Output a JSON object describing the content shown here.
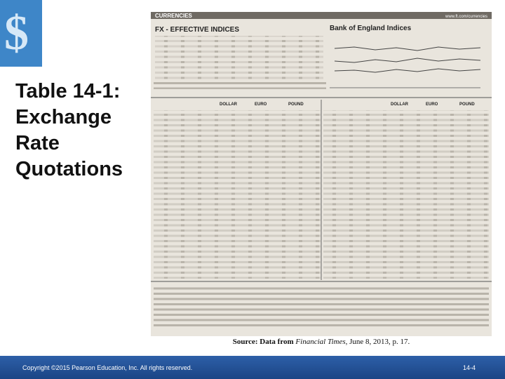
{
  "slide": {
    "title": "Table 14-1: Exchange Rate Quotations",
    "clipping": {
      "section": "CURRENCIES",
      "url": "www.ft.com/currencies",
      "left_heading": "FX - EFFECTIVE INDICES",
      "right_heading": "Bank of England Indices",
      "columns": [
        "DOLLAR",
        "EURO",
        "POUND",
        "DOLLAR",
        "EURO",
        "POUND"
      ]
    },
    "source": {
      "prefix": "Source: Data from ",
      "publication": "Financial Times",
      "suffix": ", June 8, 2013, p. 17."
    },
    "footer": {
      "copyright": "Copyright ©2015 Pearson Education, Inc. All rights reserved.",
      "page": "14-4"
    }
  }
}
